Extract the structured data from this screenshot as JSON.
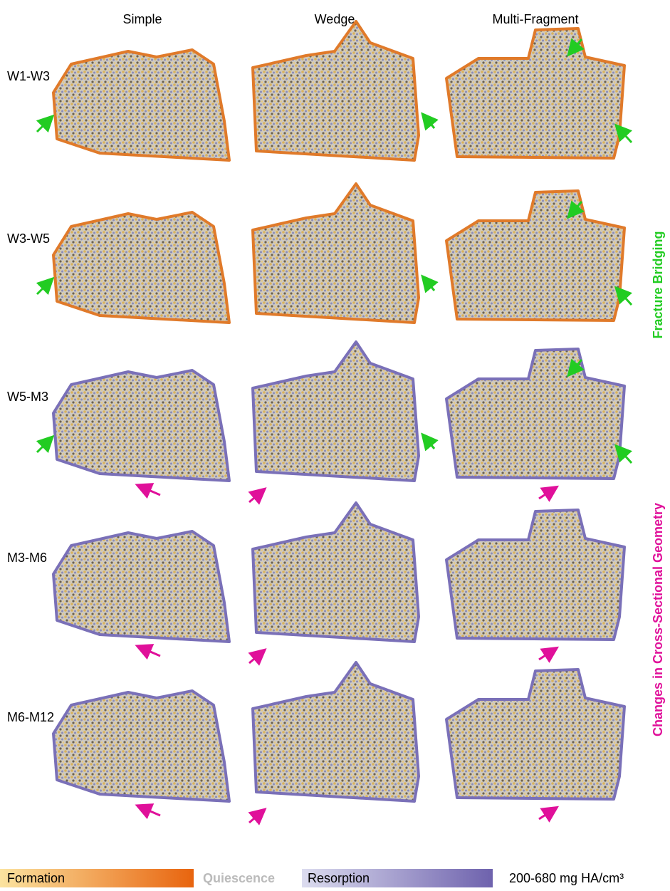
{
  "columns": [
    "Simple",
    "Wedge",
    "Multi-Fragment"
  ],
  "rows": [
    "W1-W3",
    "W3-W5",
    "W5-M3",
    "M3-M6",
    "M6-M12"
  ],
  "side_labels": {
    "top": "Fracture Bridging",
    "bottom": "Changes in Cross-Sectional Geometry"
  },
  "legend": {
    "formation": "Formation",
    "quiescence": "Quiescence",
    "resorption": "Resorption",
    "density": "200-680 mg HA/cm³"
  }
}
